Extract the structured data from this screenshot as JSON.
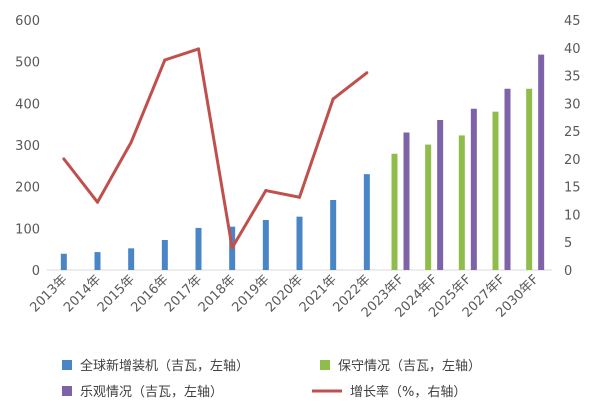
{
  "chart_data": {
    "type": "bar",
    "categories": [
      "2013年",
      "2014年",
      "2015年",
      "2016年",
      "2017年",
      "2018年",
      "2019年",
      "2020年",
      "2021年",
      "2022年",
      "2023年F",
      "2024年F",
      "2025年F",
      "2027年F",
      "2030年F"
    ],
    "series": [
      {
        "name": "全球新增装机（吉瓦，左轴）",
        "type": "bar",
        "axis": "left",
        "values": [
          39,
          43,
          52,
          72,
          101,
          104,
          120,
          128,
          168,
          230,
          null,
          null,
          null,
          null,
          null
        ]
      },
      {
        "name": "保守情况（吉瓦，左轴）",
        "type": "bar",
        "axis": "left",
        "values": [
          null,
          null,
          null,
          null,
          null,
          null,
          null,
          null,
          null,
          null,
          279,
          301,
          323,
          380,
          435
        ]
      },
      {
        "name": "乐观情况（吉瓦，左轴）",
        "type": "bar",
        "axis": "left",
        "values": [
          null,
          null,
          null,
          null,
          null,
          null,
          null,
          null,
          null,
          null,
          330,
          360,
          387,
          435,
          517
        ]
      },
      {
        "name": "增长率（%，右轴）",
        "type": "line",
        "axis": "right",
        "values": [
          20,
          12.2,
          23,
          37.8,
          39.8,
          4,
          14.3,
          13.1,
          30.8,
          35.5,
          null,
          null,
          null,
          null,
          null
        ]
      }
    ],
    "y_left": {
      "ylim": [
        0,
        600
      ],
      "ticks": [
        "0",
        "100",
        "200",
        "300",
        "400",
        "500",
        "600"
      ]
    },
    "y_right": {
      "ylim": [
        0,
        45
      ],
      "ticks": [
        "0",
        "5",
        "10",
        "15",
        "20",
        "25",
        "30",
        "35",
        "40",
        "45"
      ]
    },
    "legend_position": "bottom",
    "grid": false,
    "colors": {
      "installed": "#4a86c5",
      "conservative": "#8fbc4a",
      "optimistic": "#7f63a8",
      "growth": "#c0504d",
      "axis": "#d9d9d9",
      "text": "#595959"
    }
  }
}
